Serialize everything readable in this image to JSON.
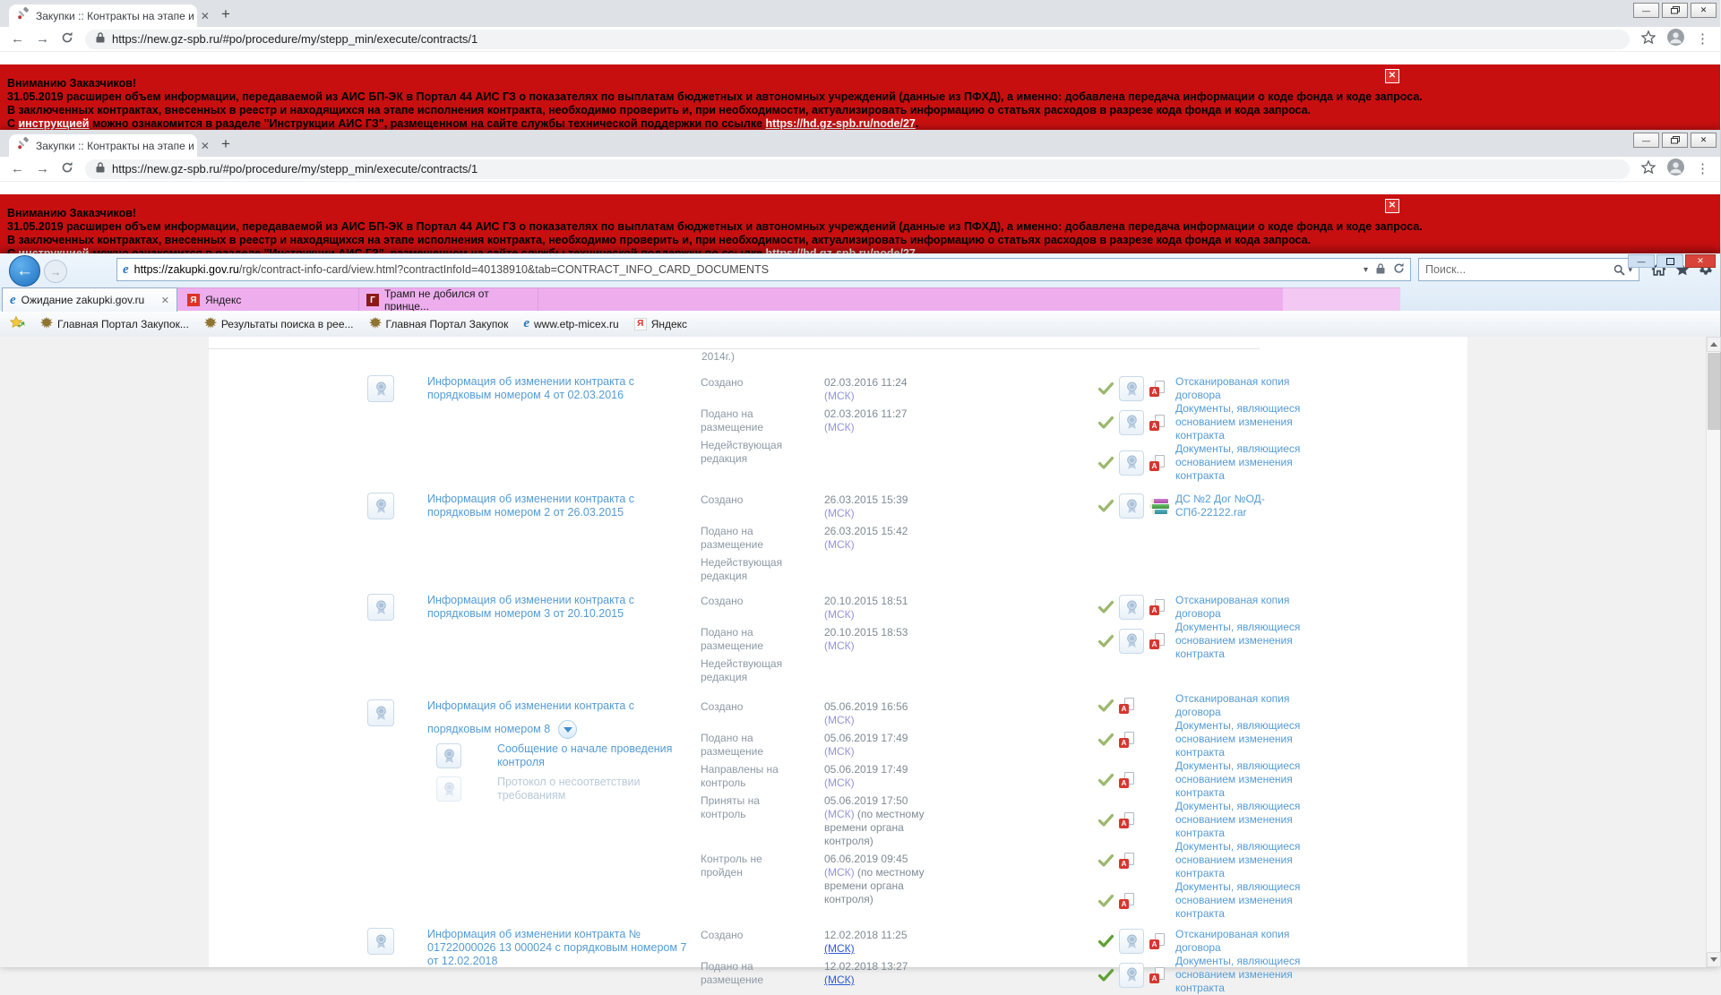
{
  "chrome": {
    "tab_title": "Закупки :: Контракты на этапе и",
    "url": "https://new.gz-spb.ru/#po/procedure/my/stepp_min/execute/contracts/1",
    "banner": {
      "heading": "Вниманию Заказчиков!",
      "line2": "31.05.2019 расширен объем информации, передаваемой из АИС БП-ЭК в Портал 44 АИС ГЗ о показателях по выплатам бюджетных и автономных учреждений (данные из ПФХД), а именно: добавлена передача информации о коде фонда и коде запроса.",
      "line3": "В заключенных контрактах, внесенных в реестр и находящихся на этапе исполнения контракта, необходимо проверить и, при необходимости, актуализировать информацию о статьях расходов в разрезе кода фонда и кода запроса.",
      "line4_pre": "С ",
      "line4_link": "инструкцией",
      "line4_mid": " можно ознакомится в разделе \"Инструкции АИС ГЗ\", размещенном на сайте службы технической поддержки по ссылке ",
      "line4_url": "https://hd.gz-spb.ru/node/27",
      "line4_end": "."
    }
  },
  "ie": {
    "url_host": "https://zakupki.gov.ru",
    "url_path": "/rgk/contract-info-card/view.html?contractInfoId=40138910&tab=CONTRACT_INFO_CARD_DOCUMENTS",
    "search_placeholder": "Поиск...",
    "tabs": [
      {
        "icon": "ie",
        "label": "Ожидание zakupki.gov.ru",
        "active": true
      },
      {
        "icon": "ya",
        "label": "Яндекс"
      },
      {
        "icon": "gazeta",
        "label": "Трамп не добился от принце..."
      }
    ],
    "favorites": [
      {
        "icon": "eagle",
        "label": "Главная Портал Закупок..."
      },
      {
        "icon": "eagle",
        "label": "Результаты поиска в рее..."
      },
      {
        "icon": "eagle",
        "label": "Главная Портал Закупок"
      },
      {
        "icon": "ie",
        "label": "www.etp-micex.ru"
      },
      {
        "icon": "ya",
        "label": "Яндекс"
      }
    ]
  },
  "content": {
    "leftover": "2014г.)",
    "groups": [
      {
        "title_lines": [
          "Информация об изменении контракта с",
          "порядковым номером 4 от 02.03.2016"
        ],
        "statuses": [
          {
            "label": "Создано",
            "date": "02.03.2016 11:24",
            "msk": "(МСК)"
          },
          {
            "label": "Подано на размещение",
            "date": "02.03.2016 11:27",
            "msk": "(МСК)"
          },
          {
            "label": "Недействующая редакция"
          }
        ],
        "docs": [
          {
            "type": "pdf",
            "medal": true,
            "text": "Отсканированая копия договора"
          },
          {
            "type": "pdf",
            "medal": true,
            "text": "Документы, являющиеся основанием изменения контракта"
          },
          {
            "type": "pdf",
            "medal": true,
            "text": "Документы, являющиеся основанием изменения контракта"
          }
        ]
      },
      {
        "title_lines": [
          "Информация об изменении контракта с",
          "порядковым номером 2 от 26.03.2015"
        ],
        "statuses": [
          {
            "label": "Создано",
            "date": "26.03.2015 15:39",
            "msk": "(МСК)"
          },
          {
            "label": "Подано на размещение",
            "date": "26.03.2015 15:42",
            "msk": "(МСК)"
          },
          {
            "label": "Недействующая редакция"
          }
        ],
        "docs": [
          {
            "type": "rar",
            "medal": true,
            "text": "ДС №2 Дог №ОД-СПб-22122.rar"
          }
        ]
      },
      {
        "title_lines": [
          "Информация об изменении контракта с",
          "порядковым номером 3 от 20.10.2015"
        ],
        "statuses": [
          {
            "label": "Создано",
            "date": "20.10.2015 18:51",
            "msk": "(МСК)"
          },
          {
            "label": "Подано на размещение",
            "date": "20.10.2015 18:53",
            "msk": "(МСК)"
          },
          {
            "label": "Недействующая редакция"
          }
        ],
        "docs": [
          {
            "type": "pdf",
            "medal": true,
            "text": "Отсканированая копия договора"
          },
          {
            "type": "pdf",
            "medal": true,
            "text": "Документы, являющиеся основанием изменения контракта"
          }
        ]
      },
      {
        "title_lines": [
          "Информация об изменении контракта с",
          "порядковым номером 8"
        ],
        "expandable": true,
        "children": [
          {
            "text": "Сообщение о начале проведения контроля",
            "disabled": false
          },
          {
            "text": "Протокол о несоответствии требованиям",
            "disabled": true
          }
        ],
        "statuses": [
          {
            "label": "Создано",
            "date": "05.06.2019 16:56",
            "msk": "(МСК)"
          },
          {
            "label": "Подано на размещение",
            "date": "05.06.2019 17:49",
            "msk": "(МСК)"
          },
          {
            "label": "Направлены на контроль",
            "date": "05.06.2019 17:49",
            "msk": "(МСК)"
          },
          {
            "label": "Приняты на контроль",
            "date": "05.06.2019 17:50",
            "msk": "(МСК)",
            "extra": " (по местному времени органа контроля)"
          },
          {
            "label": "Контроль не пройден",
            "date": "06.06.2019 09:45",
            "msk": "(МСК)",
            "extra": " (по местному времени органа контроля)"
          }
        ],
        "docs": [
          {
            "type": "pdf",
            "medal": false,
            "text": "Отсканированая копия договора"
          },
          {
            "type": "pdf",
            "medal": false,
            "text": "Документы, являющиеся основанием изменения контракта"
          },
          {
            "type": "pdf",
            "medal": false,
            "text": "Документы, являющиеся основанием изменения контракта"
          },
          {
            "type": "pdf",
            "medal": false,
            "text": "Документы, являющиеся основанием изменения контракта"
          },
          {
            "type": "pdf",
            "medal": false,
            "text": "Документы, являющиеся основанием изменения контракта"
          },
          {
            "type": "pdf",
            "medal": false,
            "text": "Документы, являющиеся основанием изменения контракта"
          }
        ]
      },
      {
        "title_lines": [
          "Информация об изменении контракта №",
          "01722000026 13 000024 с порядковым номером 7",
          "от 12.02.2018"
        ],
        "wide_title": true,
        "statuses": [
          {
            "label": "Создано",
            "date": "12.02.2018 11:25",
            "msk": "(МСК)",
            "msk_bright": true
          },
          {
            "label": "Подано на размещение",
            "date": "12.02.2018 13:27",
            "msk": "(МСК)",
            "msk_bright": true
          }
        ],
        "docs": [
          {
            "type": "pdf",
            "medal": true,
            "bright": true,
            "text": "Отсканированая копия договора"
          },
          {
            "type": "pdf",
            "medal": true,
            "bright": true,
            "text": "Документы, являющиеся основанием изменения контракта"
          }
        ]
      }
    ]
  }
}
